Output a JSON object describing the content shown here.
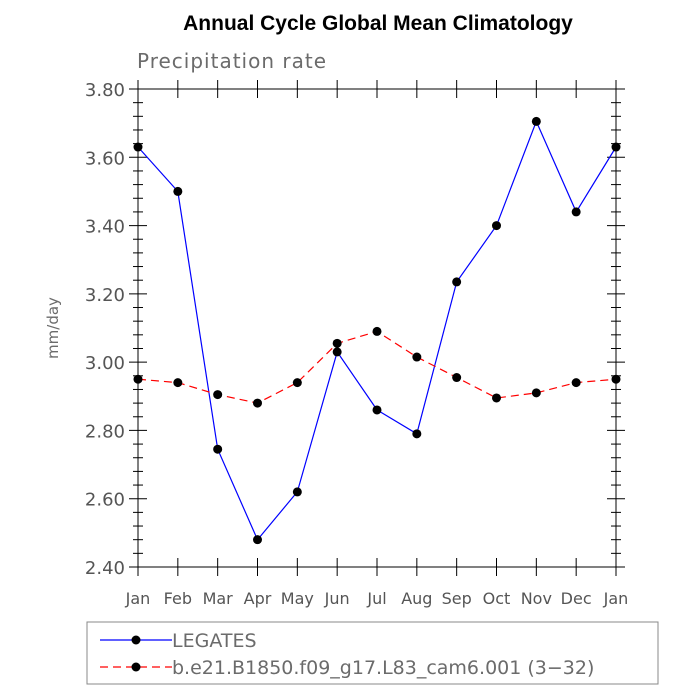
{
  "chart_data": {
    "type": "line",
    "title": "Annual Cycle Global Mean Climatology",
    "subtitle": "Precipitation rate",
    "xlabel": "",
    "ylabel": "mm/day",
    "categories": [
      "Jan",
      "Feb",
      "Mar",
      "Apr",
      "May",
      "Jun",
      "Jul",
      "Aug",
      "Sep",
      "Oct",
      "Nov",
      "Dec",
      "Jan"
    ],
    "ylim": [
      2.4,
      3.8
    ],
    "yticks": [
      "2.40",
      "2.60",
      "2.80",
      "3.00",
      "3.20",
      "3.40",
      "3.60",
      "3.80"
    ],
    "grid": false,
    "legend_position": "bottom",
    "series": [
      {
        "name": "LEGATES",
        "color": "#0000ff",
        "dash": "solid",
        "marker": "circle",
        "values": [
          3.63,
          3.5,
          2.745,
          2.48,
          2.62,
          3.03,
          2.86,
          2.79,
          3.235,
          3.4,
          3.705,
          3.44,
          3.63
        ]
      },
      {
        "name": "b.e21.B1850.f09_g17.L83_cam6.001 (3−32)",
        "color": "#ff0000",
        "dash": "dashed",
        "marker": "circle",
        "values": [
          2.95,
          2.94,
          2.905,
          2.88,
          2.94,
          3.055,
          3.09,
          3.015,
          2.955,
          2.895,
          2.91,
          2.94,
          2.95
        ]
      }
    ]
  }
}
